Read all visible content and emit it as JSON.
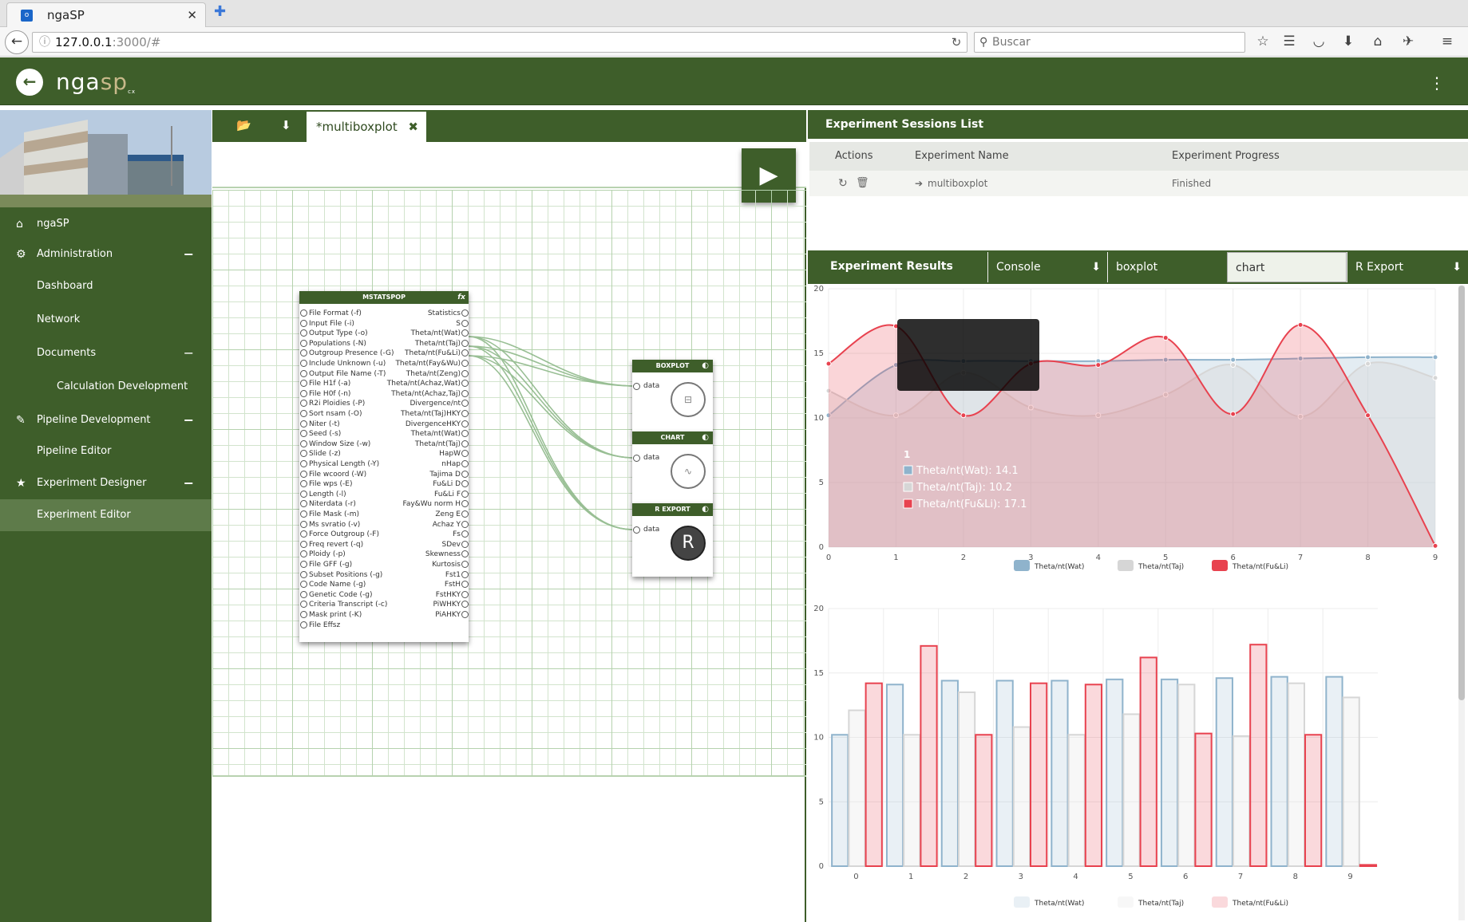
{
  "browser": {
    "tab_title": "ngaSP",
    "tab_close": "✕",
    "new_tab": "✚",
    "url_host": "127.0.0.1",
    "url_rest": ":3000/#",
    "search_placeholder": "Buscar"
  },
  "app": {
    "logo_main": "nga",
    "logo_sp": "sp",
    "logo_cx": "cx"
  },
  "sidebar": {
    "items": [
      {
        "label": "ngaSP",
        "icon": "home-icon"
      },
      {
        "label": "Administration",
        "icon": "gear-icon",
        "toggle": "−"
      },
      {
        "label": "Dashboard"
      },
      {
        "label": "Network"
      },
      {
        "label": "Documents",
        "toggle": "−"
      },
      {
        "label": "Calculation Development"
      },
      {
        "label": "Pipeline Development",
        "icon": "pencil-icon",
        "toggle": "−"
      },
      {
        "label": "Pipeline Editor"
      },
      {
        "label": "Experiment Designer",
        "icon": "star-icon",
        "toggle": "−"
      },
      {
        "label": "Experiment Editor"
      }
    ]
  },
  "editor": {
    "file_tab": "*multiboxplot",
    "file_tab_close": "✖",
    "play": "▶"
  },
  "mstatspop": {
    "title": "MSTATSPOP",
    "fx": "fx",
    "inputs": [
      "File Format (-f)",
      "Input File (-i)",
      "Output Type (-o)",
      "Populations (-N)",
      "Outgroup Presence (-G)",
      "Include Unknown (-u)",
      "Output File Name (-T)",
      "File H1f (-a)",
      "File H0f (-n)",
      "R2i Ploidies (-P)",
      "Sort nsam (-O)",
      "Niter (-t)",
      "Seed (-s)",
      "Window Size (-w)",
      "Slide (-z)",
      "Physical Length (-Y)",
      "File wcoord (-W)",
      "File wps (-E)",
      "Length (-l)",
      "Niterdata (-r)",
      "File Mask (-m)",
      "Ms svratio (-v)",
      "Force Outgroup (-F)",
      "Freq revert (-q)",
      "Ploidy (-p)",
      "File GFF (-g)",
      "Subset Positions (-g)",
      "Code Name (-g)",
      "Genetic Code (-g)",
      "Criteria Transcript (-c)",
      "Mask print (-K)",
      "File Effsz"
    ],
    "outputs": [
      "Statistics",
      "S",
      "Theta/nt(Wat)",
      "Theta/nt(Taj)",
      "Theta/nt(Fu&Li)",
      "Theta/nt(Fay&Wu)",
      "Theta/nt(Zeng)",
      "Theta/nt(Achaz,Wat)",
      "Theta/nt(Achaz,Taj)",
      "Divergence/nt",
      "Theta/nt(Taj)HKY",
      "DivergenceHKY",
      "Theta/nt(Wat)",
      "Theta/nt(Taj)",
      "HapW",
      "nHap",
      "Tajima D",
      "Fu&Li D",
      "Fu&Li F",
      "Fay&Wu norm H",
      "Zeng E",
      "Achaz Y",
      "Fs",
      "SDev",
      "Skewness",
      "Kurtosis",
      "Fst1",
      "FstH",
      "FstHKY",
      "PiWHKY",
      "PiAHKY"
    ]
  },
  "nodes": {
    "boxplot": {
      "title": "BOXPLOT",
      "input": "data"
    },
    "chart": {
      "title": "CHART",
      "input": "data"
    },
    "rexport": {
      "title": "R EXPORT",
      "input": "data",
      "glyph": "R"
    }
  },
  "sessions": {
    "title": "Experiment Sessions List",
    "col_actions": "Actions",
    "col_name": "Experiment Name",
    "col_progress": "Experiment Progress",
    "row_name": "multiboxplot",
    "row_progress": "Finished"
  },
  "results": {
    "title": "Experiment Results",
    "tabs": [
      "Console",
      "boxplot",
      "chart",
      "R Export"
    ]
  },
  "tooltip": {
    "title": "1",
    "rows": [
      {
        "label": "Theta/nt(Wat): 14.1"
      },
      {
        "label": "Theta/nt(Taj): 10.2"
      },
      {
        "label": "Theta/nt(Fu&Li): 17.1"
      }
    ]
  },
  "colors": {
    "primary": "#3e5e2a",
    "wat": "#8fb3cc",
    "taj": "#d6d6d6",
    "fuli": "#e8424f"
  },
  "chart_data": [
    {
      "type": "area",
      "x": [
        0,
        1,
        2,
        3,
        4,
        5,
        6,
        7,
        8,
        9
      ],
      "ylim": [
        0,
        20
      ],
      "yticks": [
        0,
        5,
        10,
        15,
        20
      ],
      "legend": "bottom",
      "series": [
        {
          "name": "Theta/nt(Wat)",
          "values": [
            10.2,
            14.1,
            14.4,
            14.4,
            14.4,
            14.5,
            14.5,
            14.6,
            14.7,
            14.7
          ]
        },
        {
          "name": "Theta/nt(Taj)",
          "values": [
            12.1,
            10.2,
            13.5,
            10.8,
            10.2,
            11.8,
            14.1,
            10.1,
            14.2,
            13.1
          ]
        },
        {
          "name": "Theta/nt(Fu&Li)",
          "values": [
            14.2,
            17.1,
            10.2,
            14.2,
            14.1,
            16.2,
            10.3,
            17.2,
            10.2,
            0.1
          ]
        }
      ]
    },
    {
      "type": "bar",
      "x": [
        0,
        1,
        2,
        3,
        4,
        5,
        6,
        7,
        8,
        9
      ],
      "ylim": [
        0,
        20
      ],
      "yticks": [
        0,
        5,
        10,
        15,
        20
      ],
      "legend": "bottom",
      "series": [
        {
          "name": "Theta/nt(Wat)",
          "values": [
            10.2,
            14.1,
            14.4,
            14.4,
            14.4,
            14.5,
            14.5,
            14.6,
            14.7,
            14.7
          ]
        },
        {
          "name": "Theta/nt(Taj)",
          "values": [
            12.1,
            10.2,
            13.5,
            10.8,
            10.2,
            11.8,
            14.1,
            10.1,
            14.2,
            13.1
          ]
        },
        {
          "name": "Theta/nt(Fu&Li)",
          "values": [
            14.2,
            17.1,
            10.2,
            14.2,
            14.1,
            16.2,
            10.3,
            17.2,
            10.2,
            0.1
          ]
        }
      ]
    }
  ]
}
